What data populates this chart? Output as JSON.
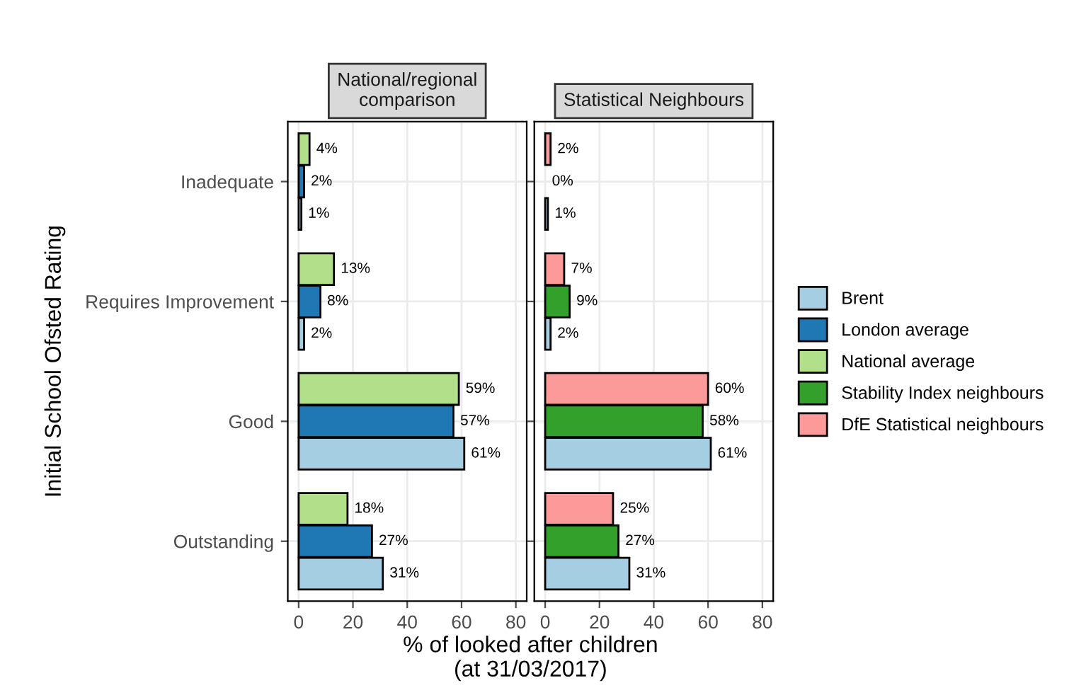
{
  "chart_data": [
    {
      "type": "bar",
      "orientation": "horizontal",
      "title": "National/regional\ncomparison",
      "ylabel": "Initial School Ofsted Rating",
      "xlabel": "% of looked after children\n(at 31/03/2017)",
      "categories": [
        "Inadequate",
        "Requires Improvement",
        "Good",
        "Outstanding"
      ],
      "xlim": [
        -4,
        84
      ],
      "xticks": [
        0,
        20,
        40,
        60,
        80
      ],
      "grid": true,
      "legend": "right",
      "series": [
        {
          "name": "Brent",
          "color": "#a6cee3",
          "values": [
            1,
            2,
            61,
            31
          ],
          "value_labels": [
            "1%",
            "2%",
            "61%",
            "31%"
          ]
        },
        {
          "name": "London average",
          "color": "#1f78b4",
          "values": [
            2,
            8,
            57,
            27
          ],
          "value_labels": [
            "2%",
            "8%",
            "57%",
            "27%"
          ]
        },
        {
          "name": "National average",
          "color": "#b2df8a",
          "values": [
            4,
            13,
            59,
            18
          ],
          "value_labels": [
            "4%",
            "13%",
            "59%",
            "18%"
          ]
        }
      ]
    },
    {
      "type": "bar",
      "orientation": "horizontal",
      "title": "Statistical Neighbours",
      "xlim": [
        -4,
        84
      ],
      "xticks": [
        0,
        20,
        40,
        60,
        80
      ],
      "grid": true,
      "tick_labels": "x",
      "legend": "right",
      "series": [
        {
          "name": "Brent",
          "color": "#a6cee3",
          "values": [
            1,
            2,
            61,
            31
          ],
          "value_labels": [
            "1%",
            "2%",
            "61%",
            "31%"
          ]
        },
        {
          "name": "Stability Index neighbours",
          "color": "#33a02c",
          "values": [
            0,
            9,
            58,
            27
          ],
          "value_labels": [
            "0%",
            "9%",
            "58%",
            "27%"
          ]
        },
        {
          "name": "DfE Statistical neighbours",
          "color": "#fb9a99",
          "values": [
            2,
            7,
            60,
            25
          ],
          "value_labels": [
            "2%",
            "7%",
            "60%",
            "25%"
          ]
        }
      ]
    }
  ]
}
